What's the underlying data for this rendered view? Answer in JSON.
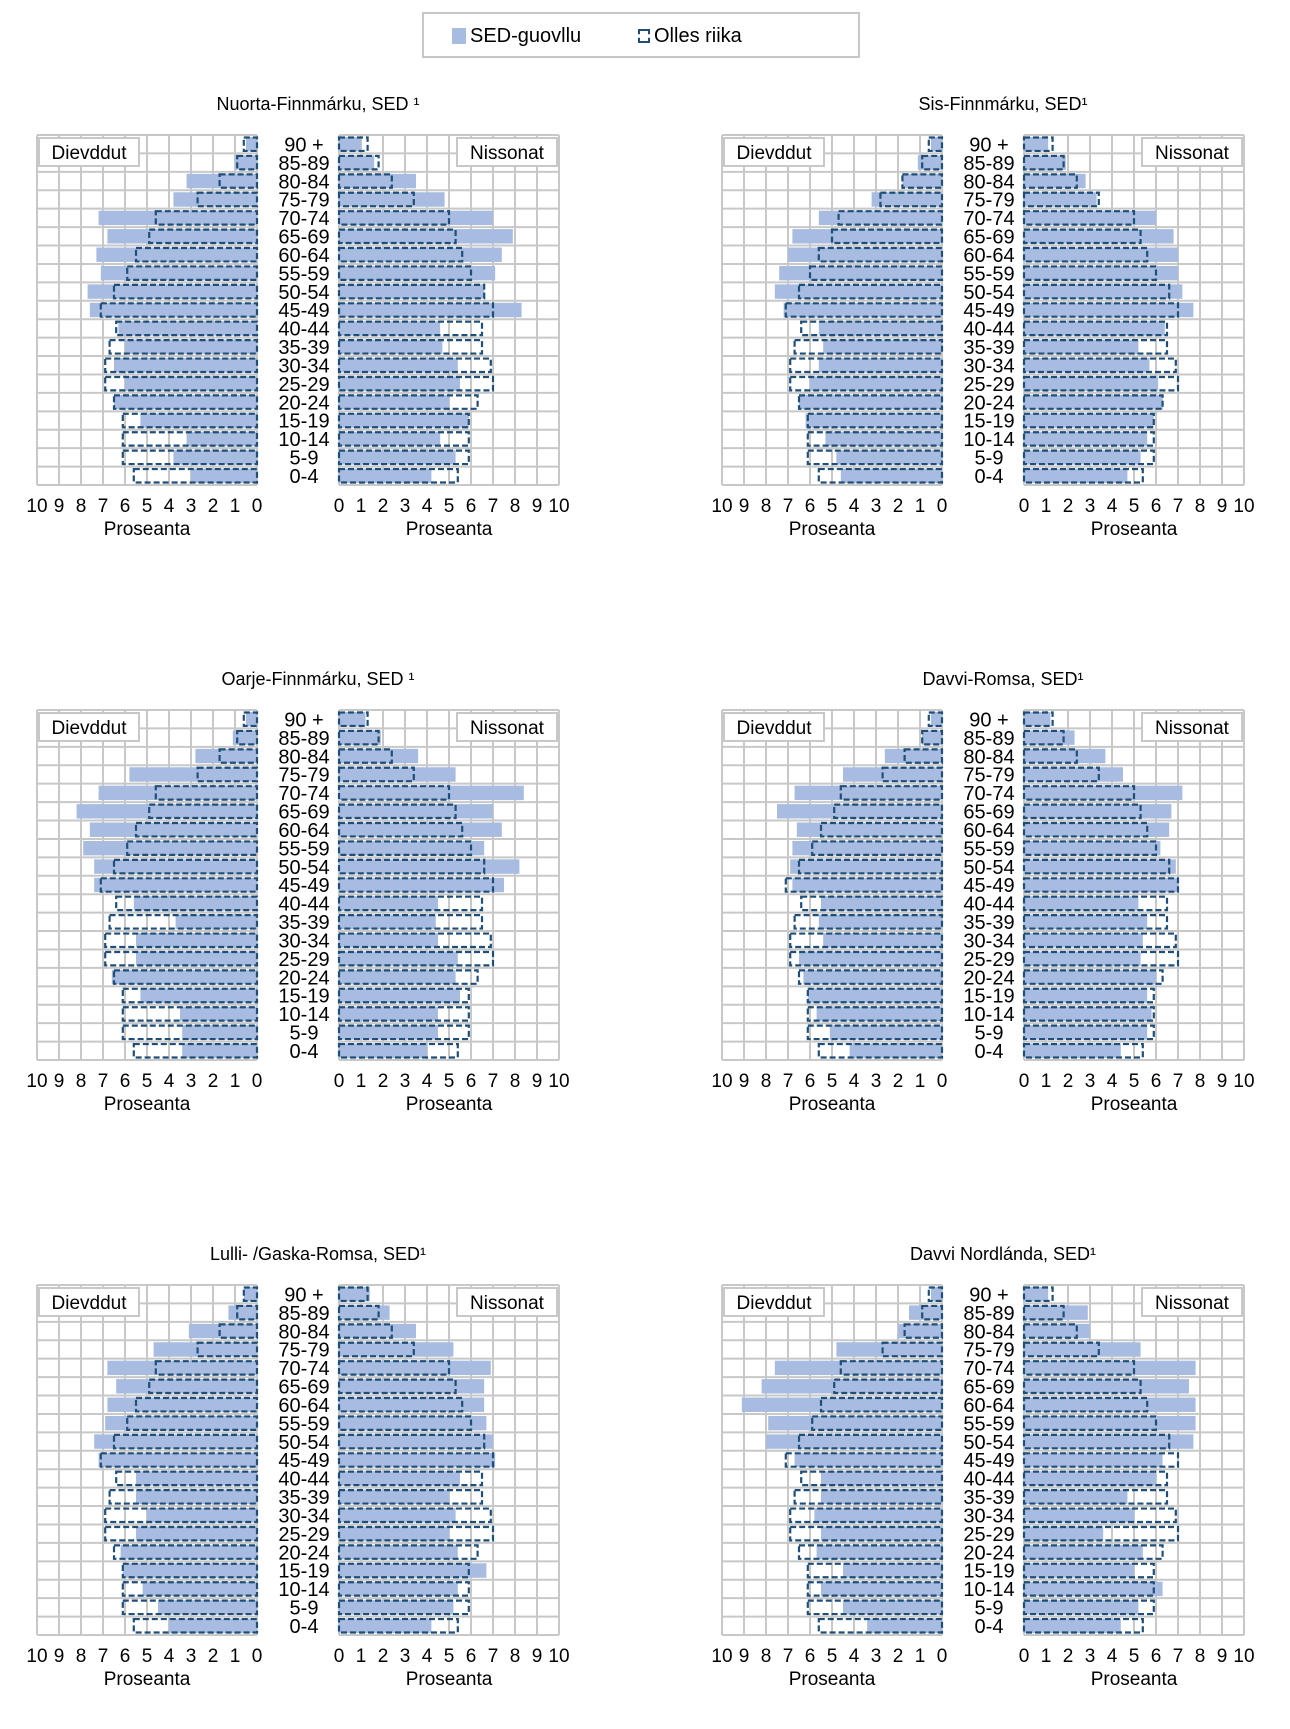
{
  "legend": {
    "series1": "SED-guovllu",
    "series2": "Olles riika"
  },
  "colors": {
    "region_fill": "#a7bce0",
    "national_stroke": "#1f4e79",
    "grid": "#c8c8c8"
  },
  "common": {
    "left_panel_label": "Dievddut",
    "right_panel_label": "Nissonat",
    "xlabel": "Proseanta",
    "age_groups": [
      "90 +",
      "85-89",
      "80-84",
      "75-79",
      "70-74",
      "65-69",
      "60-64",
      "55-59",
      "50-54",
      "45-49",
      "40-44",
      "35-39",
      "30-34",
      "25-29",
      "20-24",
      "15-19",
      "10-14",
      "5-9",
      "0-4"
    ],
    "x_ticks": [
      "0",
      "1",
      "2",
      "3",
      "4",
      "5",
      "6",
      "7",
      "8",
      "9",
      "10"
    ]
  },
  "chart_data": [
    {
      "type": "bar",
      "title": "Nuorta-Finnmárku, SED ¹",
      "xlim": [
        0,
        10
      ],
      "categories": [
        "90 +",
        "85-89",
        "80-84",
        "75-79",
        "70-74",
        "65-69",
        "60-64",
        "55-59",
        "50-54",
        "45-49",
        "40-44",
        "35-39",
        "30-34",
        "25-29",
        "20-24",
        "15-19",
        "10-14",
        "5-9",
        "0-4"
      ],
      "series": [
        {
          "name": "SED-guovllu",
          "panel": "Dievddut",
          "values": [
            0.5,
            1.0,
            3.2,
            3.8,
            7.2,
            6.8,
            7.3,
            7.1,
            7.7,
            7.6,
            6.3,
            6.0,
            6.5,
            6.0,
            6.5,
            5.3,
            3.2,
            3.8,
            3.0
          ]
        },
        {
          "name": "Olles riika",
          "panel": "Dievddut",
          "values": [
            0.6,
            0.9,
            1.7,
            2.7,
            4.6,
            4.9,
            5.5,
            5.9,
            6.5,
            7.1,
            6.4,
            6.7,
            6.9,
            6.9,
            6.5,
            6.1,
            6.1,
            6.1,
            5.6
          ]
        },
        {
          "name": "SED-guovllu",
          "panel": "Nissonat",
          "values": [
            1.0,
            1.6,
            3.5,
            4.8,
            7.0,
            7.9,
            7.4,
            7.1,
            6.6,
            8.3,
            4.6,
            4.7,
            5.4,
            5.5,
            5.0,
            5.9,
            4.6,
            5.3,
            4.2
          ]
        },
        {
          "name": "Olles riika",
          "panel": "Nissonat",
          "values": [
            1.3,
            1.8,
            2.4,
            3.4,
            5.0,
            5.3,
            5.6,
            6.0,
            6.6,
            7.0,
            6.5,
            6.5,
            6.9,
            7.0,
            6.3,
            5.9,
            5.9,
            5.9,
            5.4
          ]
        }
      ]
    },
    {
      "type": "bar",
      "title": "Sis-Finnmárku, SED¹",
      "xlim": [
        0,
        10
      ],
      "categories": [
        "90 +",
        "85-89",
        "80-84",
        "75-79",
        "70-74",
        "65-69",
        "60-64",
        "55-59",
        "50-54",
        "45-49",
        "40-44",
        "35-39",
        "30-34",
        "25-29",
        "20-24",
        "15-19",
        "10-14",
        "5-9",
        "0-4"
      ],
      "series": [
        {
          "name": "SED-guovllu",
          "panel": "Dievddut",
          "values": [
            0.5,
            1.1,
            1.8,
            3.2,
            5.6,
            6.8,
            7.0,
            7.4,
            7.6,
            7.2,
            5.6,
            5.4,
            5.6,
            6.0,
            6.5,
            6.2,
            5.3,
            4.8,
            4.6
          ]
        },
        {
          "name": "Olles riika",
          "panel": "Dievddut",
          "values": [
            0.6,
            0.9,
            1.8,
            2.8,
            4.7,
            5.0,
            5.6,
            6.0,
            6.5,
            7.1,
            6.4,
            6.7,
            6.9,
            6.9,
            6.5,
            6.1,
            6.1,
            6.1,
            5.6
          ]
        },
        {
          "name": "SED-guovllu",
          "panel": "Nissonat",
          "values": [
            1.1,
            1.9,
            2.8,
            3.3,
            6.0,
            6.8,
            7.0,
            7.0,
            7.2,
            7.7,
            6.4,
            5.2,
            5.7,
            6.1,
            6.3,
            5.9,
            5.6,
            5.3,
            4.7
          ]
        },
        {
          "name": "Olles riika",
          "panel": "Nissonat",
          "values": [
            1.3,
            1.8,
            2.4,
            3.4,
            5.0,
            5.3,
            5.6,
            6.0,
            6.6,
            7.0,
            6.5,
            6.5,
            6.9,
            7.0,
            6.3,
            5.9,
            5.9,
            5.9,
            5.4
          ]
        }
      ]
    },
    {
      "type": "bar",
      "title": "Oarje-Finnmárku, SED ¹",
      "xlim": [
        0,
        10
      ],
      "categories": [
        "90 +",
        "85-89",
        "80-84",
        "75-79",
        "70-74",
        "65-69",
        "60-64",
        "55-59",
        "50-54",
        "45-49",
        "40-44",
        "35-39",
        "30-34",
        "25-29",
        "20-24",
        "15-19",
        "10-14",
        "5-9",
        "0-4"
      ],
      "series": [
        {
          "name": "SED-guovllu",
          "panel": "Dievddut",
          "values": [
            0.5,
            1.1,
            2.8,
            5.8,
            7.2,
            8.2,
            7.6,
            7.9,
            7.4,
            7.4,
            5.6,
            3.7,
            5.5,
            5.5,
            6.6,
            5.3,
            3.5,
            3.4,
            3.4
          ]
        },
        {
          "name": "Olles riika",
          "panel": "Dievddut",
          "values": [
            0.6,
            0.9,
            1.7,
            2.7,
            4.6,
            4.9,
            5.5,
            5.9,
            6.5,
            7.1,
            6.4,
            6.7,
            6.9,
            6.9,
            6.5,
            6.1,
            6.1,
            6.1,
            5.6
          ]
        },
        {
          "name": "SED-guovllu",
          "panel": "Nissonat",
          "values": [
            1.2,
            1.9,
            3.6,
            5.3,
            8.4,
            7.0,
            7.4,
            6.6,
            8.2,
            7.5,
            4.5,
            4.4,
            4.5,
            5.4,
            5.3,
            5.5,
            4.5,
            4.5,
            4.0
          ]
        },
        {
          "name": "Olles riika",
          "panel": "Nissonat",
          "values": [
            1.3,
            1.8,
            2.4,
            3.4,
            5.0,
            5.3,
            5.6,
            6.0,
            6.6,
            7.0,
            6.5,
            6.5,
            6.9,
            7.0,
            6.3,
            5.9,
            5.9,
            5.9,
            5.4
          ]
        }
      ]
    },
    {
      "type": "bar",
      "title": "Davvi-Romsa, SED¹",
      "xlim": [
        0,
        10
      ],
      "categories": [
        "90 +",
        "85-89",
        "80-84",
        "75-79",
        "70-74",
        "65-69",
        "60-64",
        "55-59",
        "50-54",
        "45-49",
        "40-44",
        "35-39",
        "30-34",
        "25-29",
        "20-24",
        "15-19",
        "10-14",
        "5-9",
        "0-4"
      ],
      "series": [
        {
          "name": "SED-guovllu",
          "panel": "Dievddut",
          "values": [
            0.5,
            0.9,
            2.6,
            4.5,
            6.7,
            7.5,
            6.6,
            6.8,
            6.9,
            6.8,
            5.5,
            5.6,
            5.4,
            6.5,
            6.3,
            6.1,
            5.7,
            5.1,
            4.2
          ]
        },
        {
          "name": "Olles riika",
          "panel": "Dievddut",
          "values": [
            0.6,
            0.9,
            1.7,
            2.7,
            4.6,
            4.9,
            5.5,
            5.9,
            6.5,
            7.1,
            6.4,
            6.7,
            6.9,
            6.9,
            6.5,
            6.1,
            6.1,
            6.1,
            5.6
          ]
        },
        {
          "name": "SED-guovllu",
          "panel": "Nissonat",
          "values": [
            1.2,
            2.3,
            3.7,
            4.5,
            7.2,
            6.7,
            6.6,
            6.2,
            6.9,
            7.0,
            5.2,
            5.6,
            5.4,
            5.3,
            6.0,
            5.6,
            5.8,
            5.6,
            4.4
          ]
        },
        {
          "name": "Olles riika",
          "panel": "Nissonat",
          "values": [
            1.3,
            1.8,
            2.4,
            3.4,
            5.0,
            5.3,
            5.6,
            6.0,
            6.6,
            7.0,
            6.5,
            6.5,
            6.9,
            7.0,
            6.3,
            5.9,
            5.9,
            5.9,
            5.4
          ]
        }
      ]
    },
    {
      "type": "bar",
      "title": "Lulli- /Gaska-Romsa, SED¹",
      "xlim": [
        0,
        10
      ],
      "categories": [
        "90 +",
        "85-89",
        "80-84",
        "75-79",
        "70-74",
        "65-69",
        "60-64",
        "55-59",
        "50-54",
        "45-49",
        "40-44",
        "35-39",
        "30-34",
        "25-29",
        "20-24",
        "15-19",
        "10-14",
        "5-9",
        "0-4"
      ],
      "series": [
        {
          "name": "SED-guovllu",
          "panel": "Dievddut",
          "values": [
            0.6,
            1.3,
            3.1,
            4.7,
            6.8,
            6.4,
            6.8,
            6.9,
            7.4,
            7.2,
            5.5,
            5.5,
            5.0,
            5.5,
            6.2,
            6.1,
            5.2,
            4.5,
            4.0
          ]
        },
        {
          "name": "Olles riika",
          "panel": "Dievddut",
          "values": [
            0.6,
            0.9,
            1.7,
            2.7,
            4.6,
            4.9,
            5.5,
            5.9,
            6.5,
            7.1,
            6.4,
            6.7,
            6.9,
            6.9,
            6.5,
            6.1,
            6.1,
            6.1,
            5.6
          ]
        },
        {
          "name": "SED-guovllu",
          "panel": "Nissonat",
          "values": [
            1.4,
            2.3,
            3.5,
            5.2,
            6.9,
            6.6,
            6.6,
            6.7,
            7.0,
            7.1,
            5.5,
            5.0,
            5.3,
            5.0,
            5.4,
            6.7,
            5.4,
            5.2,
            4.2
          ]
        },
        {
          "name": "Olles riika",
          "panel": "Nissonat",
          "values": [
            1.3,
            1.8,
            2.4,
            3.4,
            5.0,
            5.3,
            5.6,
            6.0,
            6.6,
            7.0,
            6.5,
            6.5,
            6.9,
            7.0,
            6.3,
            5.9,
            5.9,
            5.9,
            5.4
          ]
        }
      ]
    },
    {
      "type": "bar",
      "title": "Davvi Nordlánda, SED¹",
      "xlim": [
        0,
        10
      ],
      "categories": [
        "90 +",
        "85-89",
        "80-84",
        "75-79",
        "70-74",
        "65-69",
        "60-64",
        "55-59",
        "50-54",
        "45-49",
        "40-44",
        "35-39",
        "30-34",
        "25-29",
        "20-24",
        "15-19",
        "10-14",
        "5-9",
        "0-4"
      ],
      "series": [
        {
          "name": "SED-guovllu",
          "panel": "Dievddut",
          "values": [
            0.5,
            1.5,
            2.0,
            4.8,
            7.6,
            8.2,
            9.1,
            7.9,
            8.0,
            6.7,
            5.5,
            5.5,
            5.8,
            5.5,
            5.7,
            4.5,
            5.5,
            4.5,
            3.4
          ]
        },
        {
          "name": "Olles riika",
          "panel": "Dievddut",
          "values": [
            0.6,
            0.9,
            1.7,
            2.7,
            4.6,
            4.9,
            5.5,
            5.9,
            6.5,
            7.1,
            6.4,
            6.7,
            6.9,
            6.9,
            6.5,
            6.1,
            6.1,
            6.1,
            5.6
          ]
        },
        {
          "name": "SED-guovllu",
          "panel": "Nissonat",
          "values": [
            1.1,
            2.9,
            3.0,
            5.3,
            7.8,
            7.5,
            7.8,
            7.8,
            7.7,
            6.3,
            6.0,
            4.7,
            5.0,
            3.6,
            5.4,
            5.0,
            6.3,
            5.2,
            4.4
          ]
        },
        {
          "name": "Olles riika",
          "panel": "Nissonat",
          "values": [
            1.3,
            1.8,
            2.4,
            3.4,
            5.0,
            5.3,
            5.6,
            6.0,
            6.6,
            7.0,
            6.5,
            6.5,
            6.9,
            7.0,
            6.3,
            5.9,
            5.9,
            5.9,
            5.4
          ]
        }
      ]
    }
  ]
}
